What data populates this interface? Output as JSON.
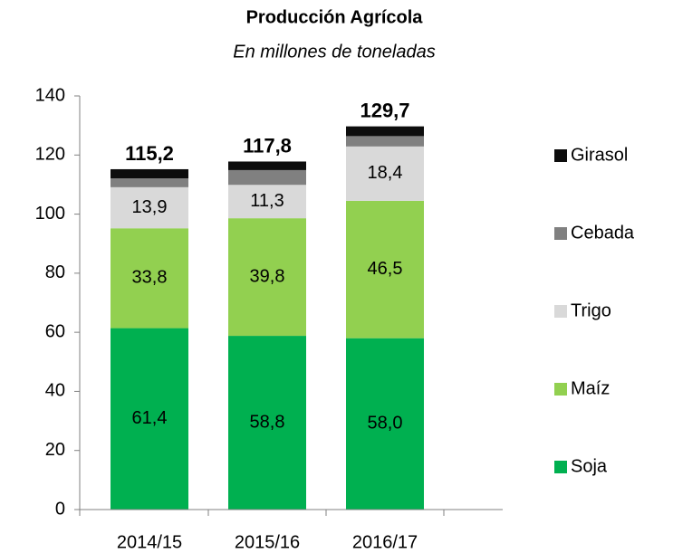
{
  "chart_data": {
    "type": "stacked_bar",
    "title": "Producción Agrícola",
    "subtitle": "En millones de toneladas",
    "categories": [
      "2014/15",
      "2015/16",
      "2016/17"
    ],
    "series": [
      {
        "name": "Soja",
        "color": "#00b050",
        "values": [
          61.4,
          58.8,
          58.0
        ],
        "value_labels": [
          "61,4",
          "58,8",
          "58,0"
        ]
      },
      {
        "name": "Maíz",
        "color": "#92d050",
        "values": [
          33.8,
          39.8,
          46.5
        ],
        "value_labels": [
          "33,8",
          "39,8",
          "46,5"
        ]
      },
      {
        "name": "Trigo",
        "color": "#d9d9d9",
        "values": [
          13.9,
          11.3,
          18.4
        ],
        "value_labels": [
          "13,9",
          "11,3",
          "18,4"
        ]
      },
      {
        "name": "Cebada",
        "color": "#808080",
        "values": [
          3.0,
          5.0,
          3.5
        ]
      },
      {
        "name": "Girasol",
        "color": "#0d0d0d",
        "values": [
          3.1,
          2.9,
          3.3
        ]
      }
    ],
    "totals": [
      115.2,
      117.8,
      129.7
    ],
    "total_labels": [
      "115,2",
      "117,8",
      "129,7"
    ],
    "ylim": [
      0,
      140
    ],
    "yticks": [
      0,
      20,
      40,
      60,
      80,
      100,
      120,
      140
    ],
    "legend": "right"
  }
}
